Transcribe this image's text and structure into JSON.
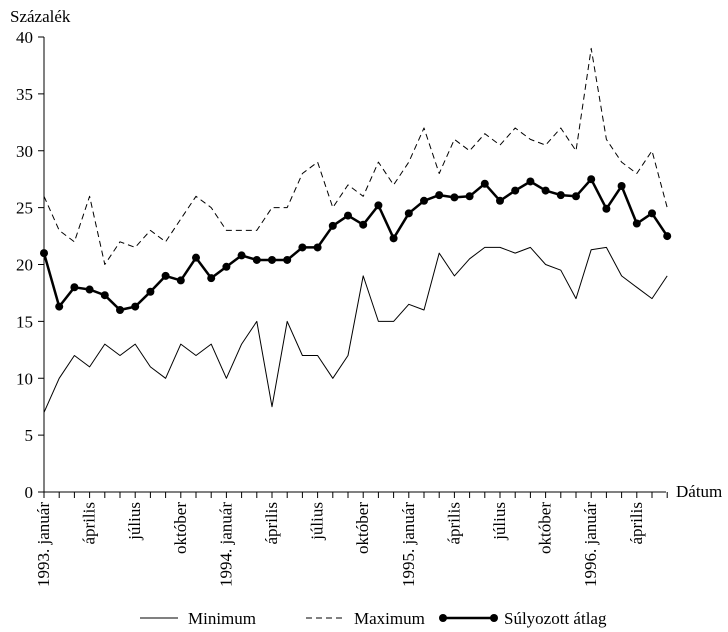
{
  "chart_data": {
    "type": "line",
    "ylabel": "Százalék",
    "xlabel": "Dátum",
    "ylim": [
      0,
      40
    ],
    "yticks": [
      0,
      5,
      10,
      15,
      20,
      25,
      30,
      35,
      40
    ],
    "x_count": 42,
    "x_tick_labels": [
      {
        "index": 0,
        "label": "1993. január"
      },
      {
        "index": 3,
        "label": "április"
      },
      {
        "index": 6,
        "label": "július"
      },
      {
        "index": 9,
        "label": "október"
      },
      {
        "index": 12,
        "label": "1994. január"
      },
      {
        "index": 15,
        "label": "április"
      },
      {
        "index": 18,
        "label": "július"
      },
      {
        "index": 21,
        "label": "október"
      },
      {
        "index": 24,
        "label": "1995. január"
      },
      {
        "index": 27,
        "label": "április"
      },
      {
        "index": 30,
        "label": "július"
      },
      {
        "index": 33,
        "label": "október"
      },
      {
        "index": 36,
        "label": "1996. január"
      },
      {
        "index": 39,
        "label": "április"
      }
    ],
    "grid": false,
    "legend_position": "bottom",
    "series": [
      {
        "name": "Minimum",
        "style": "solid",
        "values": [
          7,
          10,
          12,
          11,
          13,
          12,
          13,
          11,
          10,
          13,
          12,
          13,
          10,
          13,
          15,
          7.5,
          15,
          12,
          12,
          10,
          12,
          19,
          15,
          15,
          16.5,
          16,
          21,
          19,
          20.5,
          21.5,
          21.5,
          21,
          21.5,
          20,
          19.5,
          17,
          21.3,
          21.5,
          19,
          18,
          17,
          19
        ]
      },
      {
        "name": "Maximum",
        "style": "dashed",
        "values": [
          26,
          23,
          22,
          26,
          20,
          22,
          21.5,
          23,
          22,
          24,
          26,
          25,
          23,
          23,
          23,
          25,
          25,
          28,
          29,
          25,
          27,
          26,
          29,
          27,
          29,
          32,
          28,
          31,
          30,
          31.5,
          30.5,
          32,
          31,
          30.5,
          32,
          30,
          39,
          31,
          29,
          28,
          30,
          25
        ]
      },
      {
        "name": "Súlyozott átlag",
        "style": "solid-markers",
        "values": [
          21,
          16.3,
          18,
          17.8,
          17.3,
          16,
          16.3,
          17.6,
          19,
          18.6,
          20.6,
          18.8,
          19.8,
          20.8,
          20.4,
          20.4,
          20.4,
          21.5,
          21.5,
          23.4,
          24.3,
          23.5,
          25.2,
          22.3,
          24.5,
          25.6,
          26.1,
          25.9,
          26,
          27.1,
          25.6,
          26.5,
          27.3,
          26.5,
          26.1,
          26,
          27.5,
          24.9,
          26.9,
          23.6,
          24.5,
          22.5
        ]
      }
    ]
  }
}
